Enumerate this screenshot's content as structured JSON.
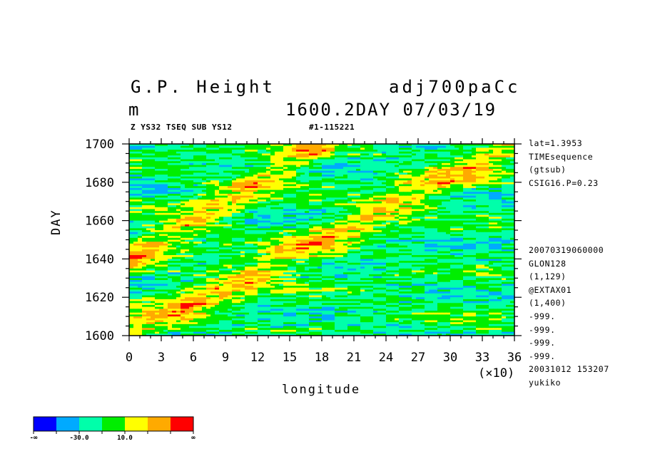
{
  "header": {
    "variable": "G.P. Height",
    "dataset": "adj700paCc",
    "unit": "m",
    "time": "1600.2DAY 07/03/19",
    "subtitle_left": "Z YS32 TSEQ SUB YS12",
    "subtitle_right": "#1-115221"
  },
  "side_info": {
    "top": [
      "lat=1.3953",
      "TIMEsequence",
      "(gtsub)",
      "CSIG16.P=0.23"
    ],
    "bottom": [
      "20070319060000",
      "GLON128",
      "(1,129)",
      "@EXTAX01",
      "(1,400)",
      "-999.",
      "-999.",
      "-999.",
      "-999.",
      "20031012 153207",
      "yukiko"
    ]
  },
  "chart_data": {
    "type": "heatmap",
    "xlabel": "longitude",
    "xlabel_scale": "(×10)",
    "ylabel": "DAY",
    "xlim": [
      0,
      36
    ],
    "ylim": [
      1600,
      1700
    ],
    "xticks": [
      "0",
      "3",
      "6",
      "9",
      "12",
      "15",
      "18",
      "21",
      "24",
      "27",
      "30",
      "33",
      "36"
    ],
    "yticks": [
      "1600",
      "1620",
      "1640",
      "1660",
      "1680",
      "1700"
    ],
    "features": [
      {
        "description": "eastward-propagating positive anomaly band",
        "day_start": 1600,
        "lon_start": 0,
        "day_end": 1700,
        "lon_end": 36
      },
      {
        "description": "eastward-propagating positive anomaly band",
        "day_start": 1640,
        "lon_start": 0,
        "day_end": 1700,
        "lon_end": 18
      }
    ],
    "colorbar": {
      "colors": [
        "#0000ff",
        "#00aaff",
        "#00ffaa",
        "#00ee00",
        "#ffff00",
        "#ffaa00",
        "#ff0000"
      ],
      "labels": [
        "-∞",
        "-30.0",
        "10.0",
        "∞"
      ]
    }
  }
}
